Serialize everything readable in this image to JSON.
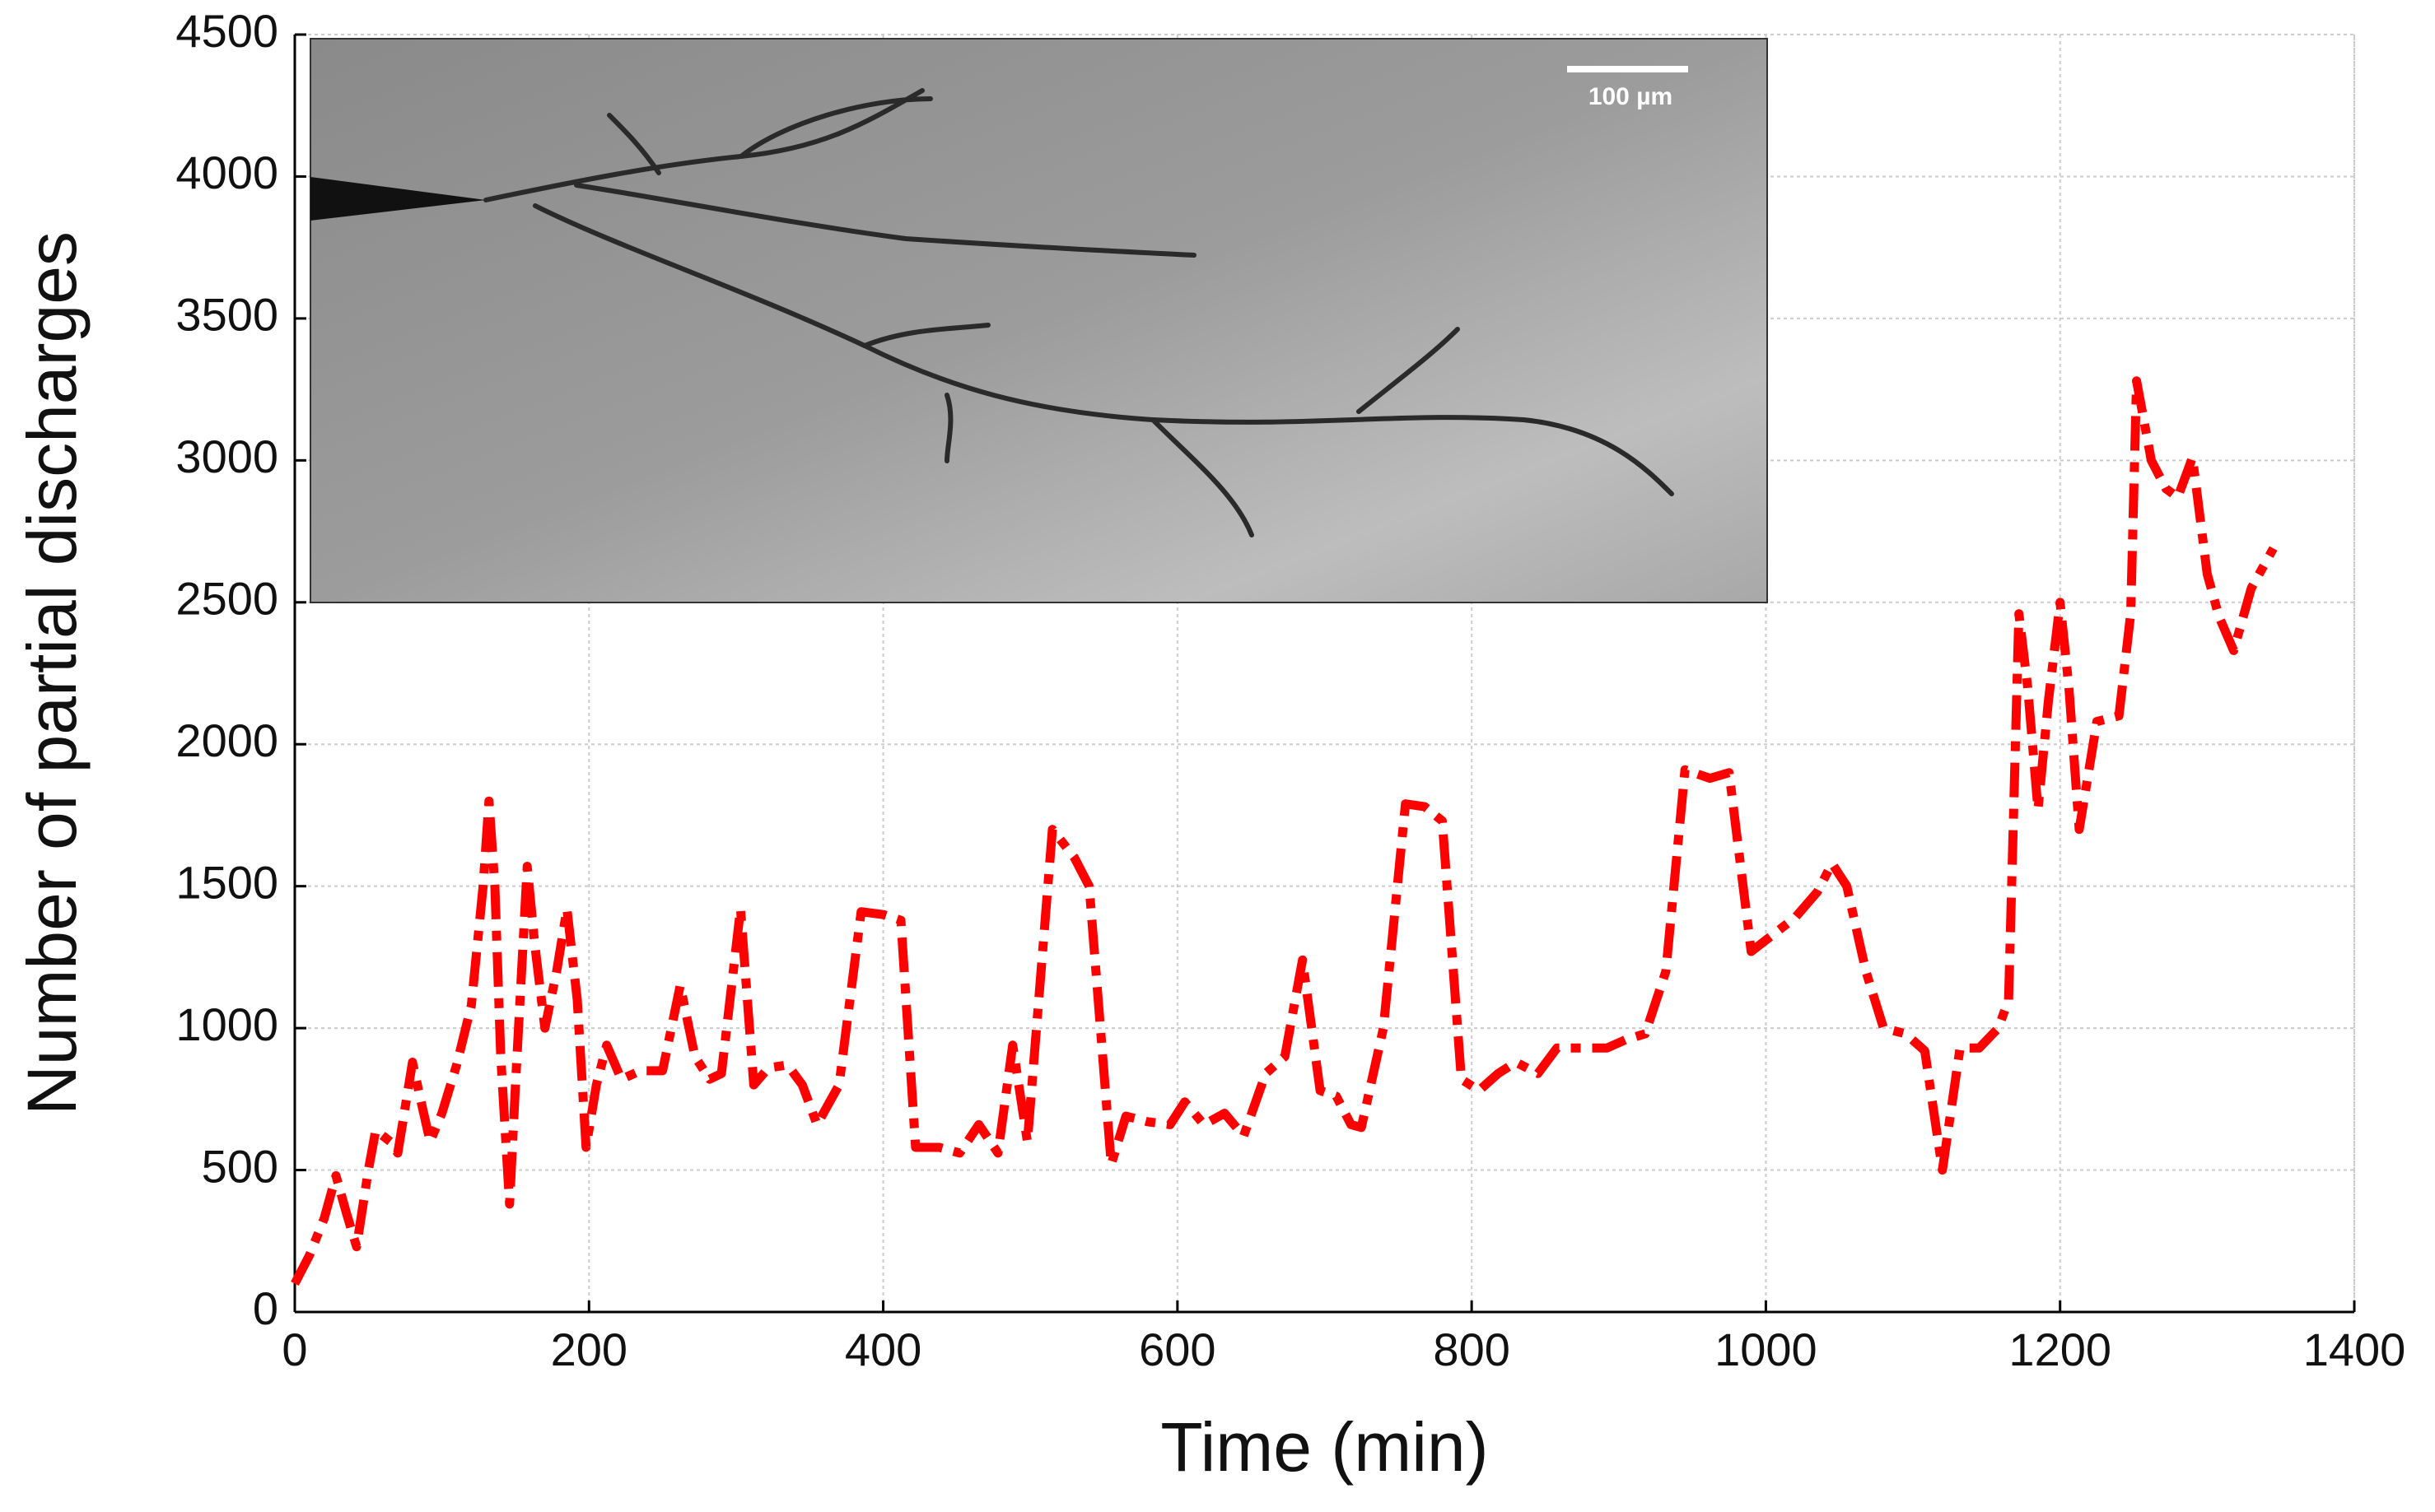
{
  "chart_data": {
    "type": "line",
    "xlabel": "Time (min)",
    "ylabel": "Number of partial discharges",
    "inset_scale_label": "100 µm",
    "xlim": [
      0,
      1400
    ],
    "ylim": [
      0,
      4500
    ],
    "xticks": [
      0,
      200,
      400,
      600,
      800,
      1000,
      1200,
      1400
    ],
    "yticks": [
      0,
      500,
      1000,
      1500,
      2000,
      2500,
      3000,
      3500,
      4000,
      4500
    ],
    "grid": true,
    "series": [
      {
        "color": "#ff0000",
        "x": [
          0,
          10,
          20,
          28,
          35,
          42,
          50,
          55,
          65,
          70,
          80,
          85,
          92,
          100,
          110,
          120,
          128,
          132,
          136,
          140,
          146,
          150,
          158,
          163,
          170,
          178,
          185,
          192,
          198,
          205,
          212,
          222,
          235,
          250,
          262,
          272,
          282,
          290,
          303,
          312,
          322,
          335,
          345,
          355,
          370,
          385,
          400,
          412,
          422,
          438,
          452,
          465,
          478,
          488,
          498,
          515,
          530,
          540,
          555,
          565,
          580,
          595,
          605,
          618,
          632,
          645,
          660,
          673,
          685,
          697,
          708,
          718,
          725,
          740,
          755,
          768,
          780,
          793,
          805,
          818,
          830,
          845,
          858,
          875,
          892,
          905,
          918,
          932,
          945,
          962,
          975,
          990,
          1005,
          1020,
          1035,
          1045,
          1055,
          1068,
          1080,
          1095,
          1108,
          1120,
          1132,
          1145,
          1158,
          1165,
          1172,
          1178,
          1185,
          1192,
          1200,
          1206,
          1213,
          1225,
          1240,
          1248,
          1252,
          1262,
          1272,
          1280,
          1290,
          1300,
          1308,
          1318,
          1330,
          1345
        ],
        "values": [
          100,
          200,
          330,
          480,
          350,
          230,
          500,
          640,
          600,
          560,
          880,
          760,
          600,
          700,
          870,
          1080,
          1500,
          1800,
          1500,
          900,
          380,
          800,
          1570,
          1300,
          1000,
          1200,
          1420,
          1100,
          580,
          800,
          940,
          820,
          850,
          850,
          1150,
          900,
          820,
          840,
          1420,
          800,
          860,
          870,
          800,
          660,
          800,
          1410,
          1400,
          1380,
          580,
          580,
          560,
          660,
          560,
          940,
          600,
          1700,
          1600,
          1500,
          520,
          690,
          670,
          660,
          740,
          660,
          700,
          620,
          840,
          900,
          1240,
          780,
          760,
          660,
          650,
          1000,
          1790,
          1780,
          1730,
          820,
          780,
          840,
          880,
          840,
          930,
          930,
          930,
          960,
          980,
          1200,
          1910,
          1880,
          1900,
          1270,
          1330,
          1390,
          1480,
          1580,
          1500,
          1200,
          1000,
          980,
          920,
          500,
          930,
          930,
          1000,
          1100,
          2460,
          2200,
          1770,
          2150,
          2500,
          2200,
          1700,
          2080,
          2100,
          2460,
          3280,
          3000,
          2900,
          2870,
          3010,
          2600,
          2450,
          2330,
          2550,
          2690
        ]
      }
    ]
  }
}
